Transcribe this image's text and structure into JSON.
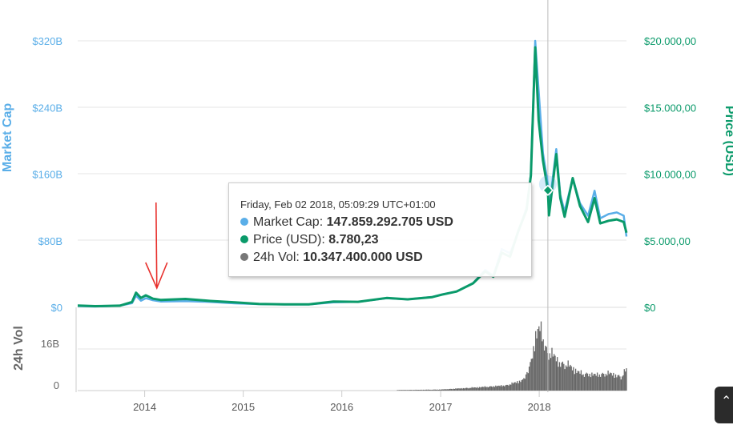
{
  "chart_data": {
    "type": "line",
    "title": "",
    "y_left_label": "Market Cap",
    "y_right_label": "Price (USD)",
    "volume_label": "24h Vol",
    "colors": {
      "market_cap": "#5aaee8",
      "price": "#0a9a6a",
      "volume": "#666666",
      "annotation_arrow": "#e8302c"
    },
    "x_ticks": [
      "2014",
      "2015",
      "2016",
      "2017",
      "2018"
    ],
    "y_left_ticks": [
      "$0",
      "$80B",
      "$160B",
      "$240B",
      "$320B"
    ],
    "y_left_lim": [
      0,
      320
    ],
    "y_left_unit": "billion USD",
    "y_right_ticks": [
      "$0",
      "$5.000,00",
      "$10.000,00",
      "$15.000,00",
      "$20.000,00"
    ],
    "y_right_lim": [
      0,
      20000
    ],
    "volume_ticks": [
      "0",
      "16B"
    ],
    "volume_lim": [
      0,
      32
    ],
    "x_range": [
      "2013-04-28",
      "2018-11-20"
    ],
    "series": [
      {
        "name": "Market Cap",
        "x": [
          "2013-04-28",
          "2013-07-01",
          "2013-10-01",
          "2013-11-15",
          "2013-11-30",
          "2013-12-18",
          "2014-01-05",
          "2014-02-01",
          "2014-03-01",
          "2014-06-01",
          "2014-09-01",
          "2014-12-01",
          "2015-03-01",
          "2015-06-01",
          "2015-09-01",
          "2015-12-01",
          "2016-03-01",
          "2016-06-15",
          "2016-09-01",
          "2016-12-01",
          "2017-01-05",
          "2017-03-01",
          "2017-05-01",
          "2017-06-15",
          "2017-07-15",
          "2017-08-15",
          "2017-09-15",
          "2017-10-15",
          "2017-11-15",
          "2017-12-01",
          "2017-12-17",
          "2017-12-30",
          "2018-01-15",
          "2018-02-02",
          "2018-02-06",
          "2018-03-05",
          "2018-03-20",
          "2018-04-05",
          "2018-05-05",
          "2018-06-01",
          "2018-07-01",
          "2018-07-25",
          "2018-08-15",
          "2018-09-15",
          "2018-10-15",
          "2018-11-10",
          "2018-11-20"
        ],
        "values": [
          1.5,
          1.0,
          2.0,
          5.0,
          14.0,
          8.0,
          11.0,
          8.5,
          7.0,
          7.5,
          6.5,
          4.8,
          3.8,
          3.5,
          3.5,
          6.0,
          6.6,
          11.0,
          9.6,
          12.5,
          15.5,
          19.0,
          29.0,
          45.0,
          38.0,
          70.0,
          65.0,
          90.0,
          120.0,
          160.0,
          320.0,
          260.0,
          185.0,
          148.0,
          118.0,
          190.0,
          135.0,
          115.0,
          155.0,
          125.0,
          110.0,
          140.0,
          107.0,
          112.0,
          114.0,
          110.0,
          85.0
        ]
      },
      {
        "name": "Price (USD)",
        "x": [
          "2013-04-28",
          "2013-07-01",
          "2013-10-01",
          "2013-11-15",
          "2013-11-30",
          "2013-12-18",
          "2014-01-05",
          "2014-02-01",
          "2014-03-01",
          "2014-06-01",
          "2014-09-01",
          "2014-12-01",
          "2015-03-01",
          "2015-06-01",
          "2015-09-01",
          "2015-12-01",
          "2016-03-01",
          "2016-06-15",
          "2016-09-01",
          "2016-12-01",
          "2017-01-05",
          "2017-03-01",
          "2017-05-01",
          "2017-06-15",
          "2017-07-15",
          "2017-08-15",
          "2017-09-15",
          "2017-10-15",
          "2017-11-15",
          "2017-12-01",
          "2017-12-17",
          "2017-12-30",
          "2018-01-15",
          "2018-02-02",
          "2018-02-06",
          "2018-03-05",
          "2018-03-20",
          "2018-04-05",
          "2018-05-05",
          "2018-06-01",
          "2018-07-01",
          "2018-07-25",
          "2018-08-15",
          "2018-09-15",
          "2018-10-15",
          "2018-11-10",
          "2018-11-20"
        ],
        "values": [
          135,
          90,
          125,
          400,
          1100,
          700,
          900,
          650,
          560,
          630,
          480,
          370,
          260,
          230,
          230,
          430,
          415,
          700,
          600,
          770,
          950,
          1190,
          1800,
          2700,
          2300,
          4100,
          3800,
          5700,
          7300,
          9900,
          19500,
          14000,
          11000,
          8780,
          6900,
          11500,
          8200,
          6800,
          9700,
          7600,
          6400,
          8200,
          6300,
          6500,
          6600,
          6400,
          5600
        ]
      },
      {
        "name": "24h Vol",
        "x": [
          "2013-04-28",
          "2013-12-01",
          "2014-06-01",
          "2015-06-01",
          "2016-06-01",
          "2017-01-01",
          "2017-06-01",
          "2017-09-01",
          "2017-11-01",
          "2017-12-01",
          "2017-12-20",
          "2018-01-05",
          "2018-02-02",
          "2018-02-15",
          "2018-03-15",
          "2018-04-15",
          "2018-06-01",
          "2018-08-01",
          "2018-09-15",
          "2018-11-01",
          "2018-11-20"
        ],
        "values": [
          0,
          0.1,
          0.05,
          0.05,
          0.1,
          0.3,
          1.0,
          1.5,
          3.0,
          8.0,
          16.0,
          18.0,
          10.347,
          11.0,
          8.0,
          7.5,
          5.0,
          4.5,
          5.0,
          4.0,
          6.0
        ]
      }
    ],
    "tooltip": {
      "date": "Friday, Feb 02 2018, 05:09:29 UTC+01:00",
      "rows": [
        {
          "label": "Market Cap:",
          "value": "147.859.292.705 USD",
          "color": "#5aaee8"
        },
        {
          "label": "Price (USD):",
          "value": "8.780,23",
          "color": "#0a9a6a"
        },
        {
          "label": "24h Vol:",
          "value": "10.347.400.000 USD",
          "color": "#777777"
        }
      ]
    },
    "crosshair_date": "2018-02-02",
    "annotation_arrow_date": "2014-02-15"
  }
}
